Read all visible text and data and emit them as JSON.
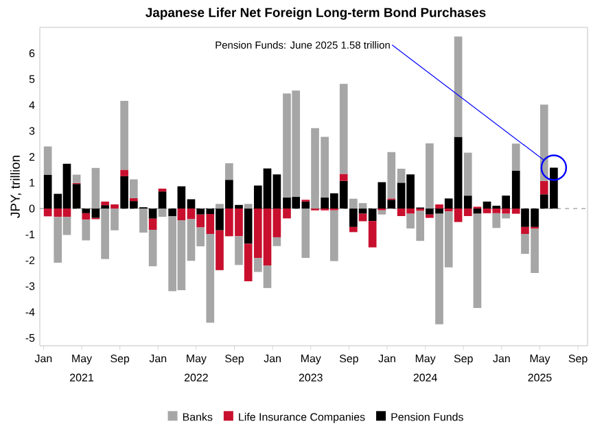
{
  "chart_data": {
    "type": "bar",
    "title": "Japanese Lifer Net Foreign Long-term Bond Purchases",
    "ylabel": "JPY, trillion",
    "stacked": true,
    "legend": "bottom",
    "x": [
      "2021-01-15",
      "2021-02-15",
      "2021-03-15",
      "2021-04-15",
      "2021-05-15",
      "2021-06-15",
      "2021-07-15",
      "2021-08-15",
      "2021-09-15",
      "2021-10-15",
      "2021-11-15",
      "2021-12-15",
      "2022-01-15",
      "2022-02-15",
      "2022-03-15",
      "2022-04-15",
      "2022-05-15",
      "2022-06-15",
      "2022-07-15",
      "2022-08-15",
      "2022-09-15",
      "2022-10-15",
      "2022-11-15",
      "2022-12-15",
      "2023-01-15",
      "2023-02-15",
      "2023-03-15",
      "2023-04-15",
      "2023-05-15",
      "2023-06-15",
      "2023-07-15",
      "2023-08-15",
      "2023-09-15",
      "2023-10-15",
      "2023-11-15",
      "2023-12-15",
      "2024-01-15",
      "2024-02-15",
      "2024-03-15",
      "2024-04-15",
      "2024-05-15",
      "2024-06-15",
      "2024-07-15",
      "2024-08-15",
      "2024-09-15",
      "2024-10-15",
      "2024-11-15",
      "2024-12-15",
      "2025-01-15",
      "2025-02-15",
      "2025-03-15",
      "2025-04-15",
      "2025-05-15",
      "2025-06-15"
    ],
    "series": [
      {
        "name": "Pension Funds",
        "color": "#000000",
        "values": [
          1.3,
          0.57,
          1.73,
          0.95,
          -0.18,
          -0.36,
          0.13,
          0,
          1.25,
          0.29,
          0.05,
          -0.39,
          0.66,
          -0.3,
          0.86,
          0.36,
          -0.23,
          -0.21,
          -0.84,
          1.11,
          0.14,
          -1.36,
          0.89,
          1.55,
          1.32,
          0.43,
          0.45,
          0.27,
          0,
          0.43,
          0.59,
          1.07,
          -0.71,
          -0.2,
          -0.48,
          1.02,
          0.34,
          1.0,
          1.32,
          0.04,
          -0.23,
          -0.2,
          0.39,
          2.77,
          0.5,
          -0.2,
          0.27,
          0.11,
          0.5,
          1.46,
          -0.71,
          -0.71,
          0.55,
          1.58
        ]
      },
      {
        "name": "Life Insurance Companies",
        "color": "#c8102e",
        "values": [
          -0.3,
          -0.32,
          -0.32,
          0.04,
          -0.25,
          -0.05,
          0.14,
          0.16,
          0.25,
          0.11,
          0,
          -0.43,
          0.11,
          0,
          -0.45,
          -0.41,
          -0.5,
          -0.77,
          -1.54,
          -1.07,
          -1.07,
          -1.45,
          -1.91,
          -2.2,
          -1.11,
          -0.38,
          0,
          0.07,
          -0.07,
          -0.07,
          -0.07,
          0.27,
          -0.2,
          -0.29,
          -1.02,
          -0.07,
          0.05,
          -0.29,
          -0.2,
          -0.09,
          -0.13,
          0.16,
          -0.11,
          -0.52,
          -0.29,
          0.07,
          -0.18,
          -0.18,
          -0.2,
          -0.2,
          -0.27,
          -0.07,
          0.52,
          0
        ]
      },
      {
        "name": "Banks",
        "color": "#a6a6a6",
        "values": [
          1.1,
          -1.77,
          -0.7,
          0.32,
          -0.8,
          1.57,
          -1.95,
          -0.84,
          2.66,
          0.73,
          -0.93,
          -1.41,
          -0.32,
          -2.89,
          -2.7,
          -1.61,
          -0.73,
          -3.43,
          0.18,
          0.64,
          -1.11,
          0.18,
          -0.54,
          -0.87,
          -0.34,
          4.02,
          4.11,
          -1.91,
          3.11,
          2.34,
          -1.96,
          3.48,
          0.38,
          0.21,
          0,
          -0.16,
          1.79,
          0.54,
          -0.57,
          -1.16,
          2.52,
          -4.27,
          -2.16,
          3.88,
          1.66,
          -3.64,
          null,
          -0.57,
          -0.18,
          1.05,
          -0.77,
          -1.71,
          2.95,
          null
        ]
      }
    ],
    "xlim": [
      "2020-12-20",
      "2025-10-01"
    ],
    "xticks": [
      {
        "value": "2021-01-01",
        "label": "Jan"
      },
      {
        "value": "2021-05-01",
        "label": "May 2021"
      },
      {
        "value": "2021-09-01",
        "label": "Sep"
      },
      {
        "value": "2022-01-01",
        "label": "Jan"
      },
      {
        "value": "2022-05-01",
        "label": "May 2022"
      },
      {
        "value": "2022-09-01",
        "label": "Sep"
      },
      {
        "value": "2023-01-01",
        "label": "Jan"
      },
      {
        "value": "2023-05-01",
        "label": "May 2023"
      },
      {
        "value": "2023-09-01",
        "label": "Sep"
      },
      {
        "value": "2024-01-01",
        "label": "Jan"
      },
      {
        "value": "2024-05-01",
        "label": "May 2024"
      },
      {
        "value": "2024-09-01",
        "label": "Sep"
      },
      {
        "value": "2025-01-01",
        "label": "Jan"
      },
      {
        "value": "2025-05-01",
        "label": "May 2025"
      },
      {
        "value": "2025-09-01",
        "label": "Sep"
      }
    ],
    "ylim": [
      -5.3,
      7.0
    ],
    "yticks": [
      -5,
      -4,
      -3,
      -2,
      -1,
      0,
      1,
      2,
      3,
      4,
      5,
      6
    ],
    "ref_lines": [
      {
        "axis": "y",
        "value": 0,
        "color": "#808080",
        "line_style": "dashed"
      }
    ],
    "annotations": [
      {
        "text": "Pension Funds: June 2025 1.58 trillion",
        "x": "2025-06-15",
        "y": 1.58
      }
    ]
  }
}
